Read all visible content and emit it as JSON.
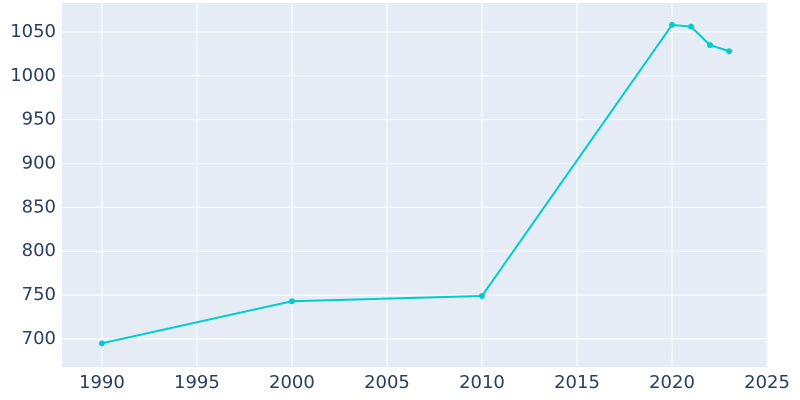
{
  "chart_data": {
    "type": "line",
    "x": [
      1990,
      2000,
      2010,
      2020,
      2021,
      2022,
      2023
    ],
    "series": [
      {
        "color": "#00cccc",
        "values": [
          695,
          743,
          749,
          1058,
          1056,
          1035,
          1028
        ]
      }
    ],
    "xlim": [
      1987.9,
      2025.05
    ],
    "xticks": [
      1990,
      1995,
      2000,
      2005,
      2010,
      2015,
      2020,
      2025
    ],
    "ylim": [
      668,
      1083
    ],
    "yticks": [
      700,
      750,
      800,
      850,
      900,
      950,
      1000,
      1050
    ],
    "grid": true
  }
}
